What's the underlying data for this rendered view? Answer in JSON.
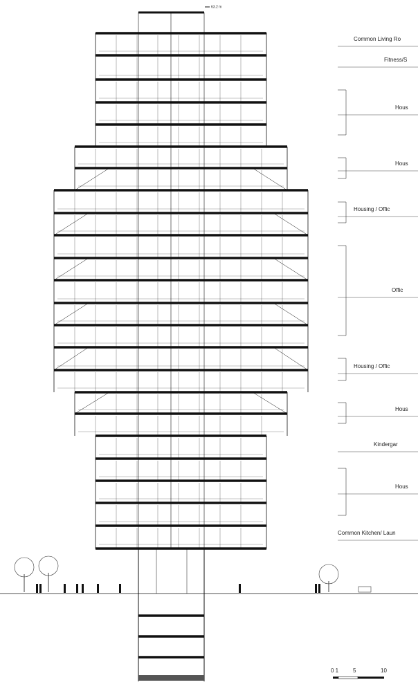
{
  "elevation_label": "63.2 m",
  "labels": [
    "Common Living Ro",
    "Fitness/S",
    "Hous",
    "Hous",
    "Housing / Offic",
    "Offic",
    "Housing / Offic",
    "Hous",
    "Kindergar",
    "Hous",
    "Common Kitchen/ Laun"
  ],
  "scale_bar": [
    "0 1",
    "5",
    "10"
  ]
}
